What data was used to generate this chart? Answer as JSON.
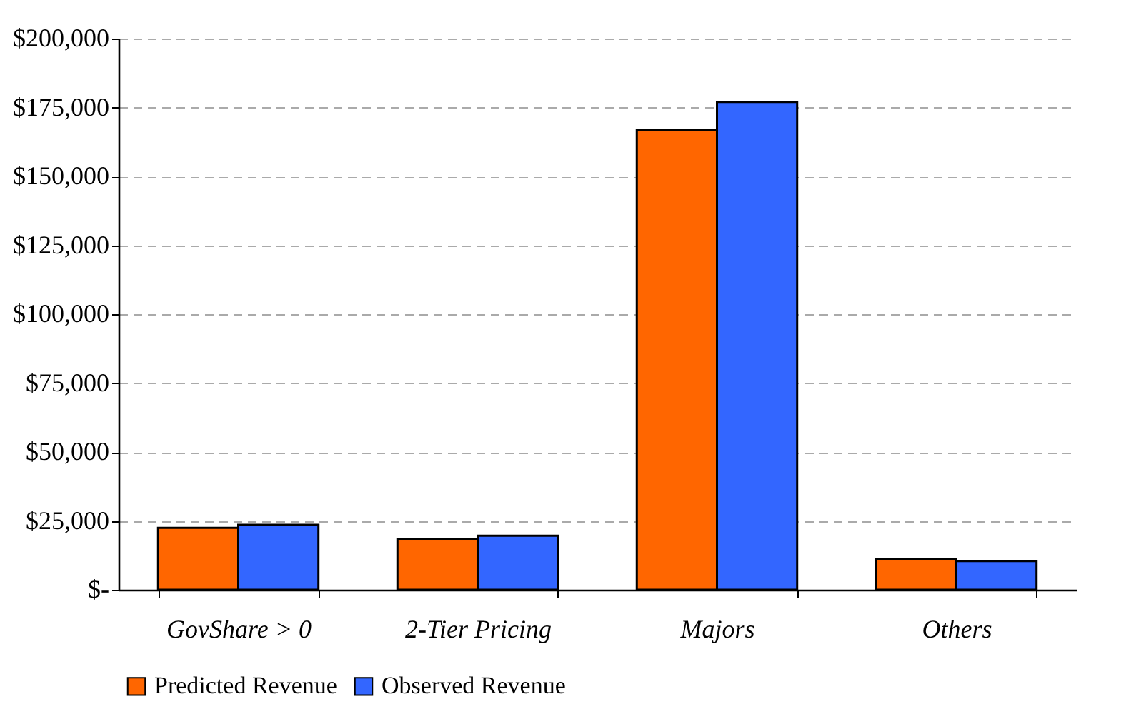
{
  "chart_data": {
    "type": "bar",
    "categories": [
      "GovShare > 0",
      "2-Tier Pricing",
      "Majors",
      "Others"
    ],
    "series": [
      {
        "name": "Predicted Revenue",
        "color": "#ff6600",
        "values": [
          22500,
          18500,
          167000,
          11300
        ]
      },
      {
        "name": "Observed Revenue",
        "color": "#3366ff",
        "values": [
          23600,
          19600,
          177000,
          10400
        ]
      }
    ],
    "ylim": [
      0,
      200000
    ],
    "yticks": [
      {
        "value": 0,
        "label": "$-"
      },
      {
        "value": 25000,
        "label": "$25,000"
      },
      {
        "value": 50000,
        "label": "$50,000"
      },
      {
        "value": 75000,
        "label": "$75,000"
      },
      {
        "value": 100000,
        "label": "$100,000"
      },
      {
        "value": 125000,
        "label": "$125,000"
      },
      {
        "value": 150000,
        "label": "$150,000"
      },
      {
        "value": 175000,
        "label": "$175,000"
      },
      {
        "value": 200000,
        "label": "$200,000"
      }
    ],
    "grid": "y",
    "legend": "bottom"
  }
}
